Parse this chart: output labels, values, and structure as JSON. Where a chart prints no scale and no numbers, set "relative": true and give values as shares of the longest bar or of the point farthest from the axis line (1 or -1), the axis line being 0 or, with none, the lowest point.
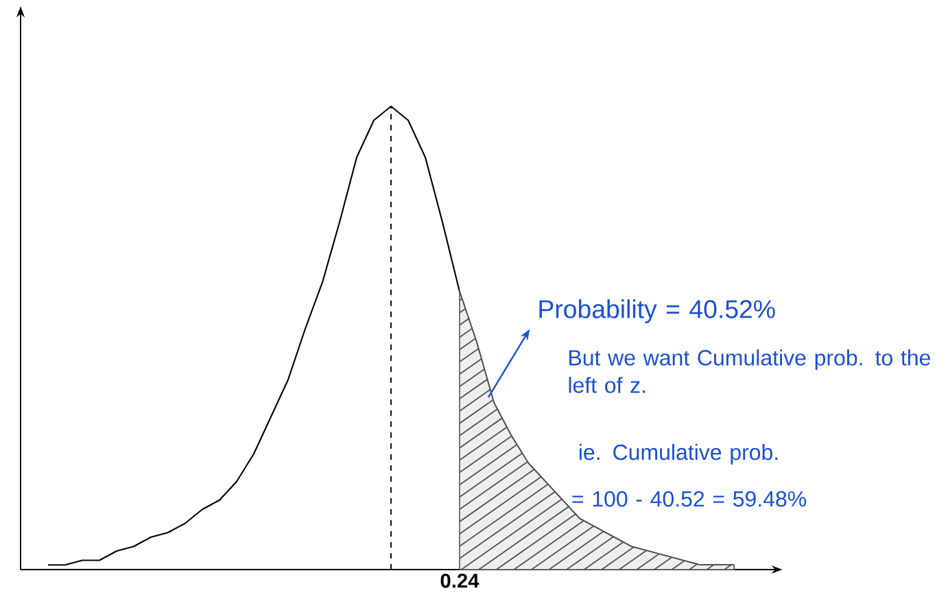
{
  "chart_data": {
    "type": "line",
    "relative": true,
    "categories": [
      null,
      null,
      null,
      null,
      null,
      null,
      null,
      null,
      null,
      null,
      null,
      null,
      null,
      null,
      null,
      null,
      null,
      null,
      null,
      null,
      null,
      null,
      null,
      null,
      null,
      null,
      null,
      null,
      null,
      null,
      null,
      null,
      null,
      null,
      null,
      null,
      null,
      null,
      null,
      null,
      null
    ],
    "series": [
      {
        "color": "#000000",
        "values": [
          0.01,
          0.01,
          0.02,
          0.02,
          0.04,
          0.05,
          0.07,
          0.08,
          0.1,
          0.13,
          0.15,
          0.19,
          0.25,
          0.33,
          0.41,
          0.52,
          0.62,
          0.75,
          0.89,
          0.97,
          1,
          0.97,
          0.89,
          0.75,
          0.6,
          0.49,
          0.36,
          0.29,
          0.23,
          0.19,
          0.15,
          0.11,
          0.09,
          0.07,
          0.05,
          0.04,
          0.03,
          0.02,
          0.01,
          0.01,
          0.01
        ]
      },
      {
        "type": "area",
        "color": "#555555",
        "values": [
          null,
          null,
          null,
          null,
          null,
          null,
          null,
          null,
          null,
          null,
          null,
          null,
          null,
          null,
          null,
          null,
          null,
          null,
          null,
          null,
          null,
          null,
          null,
          null,
          0.6,
          0.49,
          0.36,
          0.29,
          0.23,
          0.19,
          0.15,
          0.11,
          0.09,
          0.07,
          0.05,
          0.04,
          0.03,
          0.02,
          0.01,
          0.01,
          0.01
        ]
      }
    ],
    "annotations": [
      "0.24",
      "Probability = 40.52%",
      "But we want Cumulative prob. to the left of z.",
      "ie. Cumulative prob.",
      "= 100 - 40.52 = 59.48%"
    ]
  }
}
